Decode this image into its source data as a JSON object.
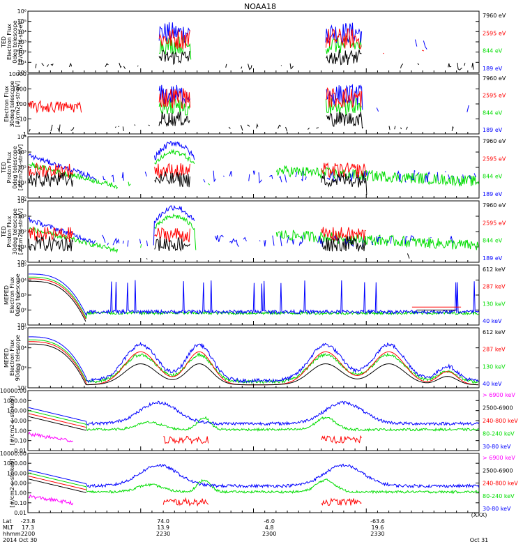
{
  "title": "NOAA18",
  "colors": {
    "black": "#000000",
    "red": "#ff0000",
    "green": "#00dd00",
    "blue": "#0000ff",
    "magenta": "#ff00ff",
    "axis": "#000000"
  },
  "chart_data": [
    {
      "type": "line",
      "ylabel": [
        "TED",
        "Electron Flux",
        "0deg telescope",
        "[#/cm2-s-str-eV]"
      ],
      "yticks": [
        "10⁰",
        "10¹",
        "10²",
        "10³",
        "10⁴",
        "10⁵",
        "10⁶"
      ],
      "ylim_log": [
        0,
        6
      ],
      "series": [
        {
          "name": "7960 eV",
          "color": "black"
        },
        {
          "name": "2595 eV",
          "color": "red"
        },
        {
          "name": "844 eV",
          "color": "green"
        },
        {
          "name": "189 eV",
          "color": "blue"
        }
      ]
    },
    {
      "type": "line",
      "ylabel": [
        "Electron Flux",
        "30deg telescope",
        "[#/cm2-s-str-eV]"
      ],
      "yticks": [
        "1",
        "10",
        "100",
        "1000",
        "10000"
      ],
      "ylim_log": [
        0,
        4
      ],
      "series": [
        {
          "name": "7960 eV",
          "color": "black"
        },
        {
          "name": "2595 eV",
          "color": "red"
        },
        {
          "name": "844 eV",
          "color": "green"
        },
        {
          "name": "189 eV",
          "color": "blue"
        }
      ]
    },
    {
      "type": "line",
      "ylabel": [
        "TED",
        "Proton Flux",
        "0deg telescope",
        "[#/cm2-s-str-eV]"
      ],
      "yticks": [
        "10⁰",
        "10¹",
        "10²",
        "10³",
        "10⁴"
      ],
      "ylim_log": [
        0,
        4
      ],
      "series": [
        {
          "name": "7960 eV",
          "color": "black"
        },
        {
          "name": "2595 eV",
          "color": "red"
        },
        {
          "name": "844 eV",
          "color": "green"
        },
        {
          "name": "189 eV",
          "color": "blue"
        }
      ]
    },
    {
      "type": "line",
      "ylabel": [
        "TED",
        "Proton Flux",
        "30deg telescope",
        "[#/cm2-s-str-eV]"
      ],
      "yticks": [
        "10⁰",
        "10¹",
        "10²",
        "10³",
        "10⁴"
      ],
      "ylim_log": [
        0,
        4
      ],
      "series": [
        {
          "name": "7960 eV",
          "color": "black"
        },
        {
          "name": "2595 eV",
          "color": "red"
        },
        {
          "name": "844 eV",
          "color": "green"
        },
        {
          "name": "189 eV",
          "color": "blue"
        }
      ]
    },
    {
      "type": "line",
      "ylabel": [
        "MEPED",
        "Electron Flux",
        "0deg telescope"
      ],
      "yticks": [
        "10¹",
        "10²",
        "10³",
        "10⁴",
        "10⁵"
      ],
      "ylim_log": [
        1,
        5
      ],
      "series": [
        {
          "name": "612 keV",
          "color": "black"
        },
        {
          "name": "287 keV",
          "color": "red"
        },
        {
          "name": "130 keV",
          "color": "green"
        },
        {
          "name": "40 keV",
          "color": "blue"
        }
      ]
    },
    {
      "type": "line",
      "ylabel": [
        "MEPED",
        "Electron Flux",
        "90deg telescope"
      ],
      "yticks": [
        "10²",
        "10³",
        "10⁴",
        "10⁵"
      ],
      "ylim_log": [
        2,
        5
      ],
      "series": [
        {
          "name": "612 keV",
          "color": "black"
        },
        {
          "name": "287 keV",
          "color": "red"
        },
        {
          "name": "130 keV",
          "color": "green"
        },
        {
          "name": "40 keV",
          "color": "blue"
        }
      ]
    },
    {
      "type": "line",
      "ylabel": [
        "[#/cm2-s-str-keV]"
      ],
      "yticks": [
        "0.01",
        "0.10",
        "1.00",
        "10.00",
        "100.00",
        "1000.00",
        "10000.00"
      ],
      "ylim_log": [
        -2,
        4
      ],
      "series": [
        {
          "name": "> 6900 keV",
          "color": "magenta"
        },
        {
          "name": "2500-6900",
          "color": "black"
        },
        {
          "name": "240-800 keV",
          "color": "red"
        },
        {
          "name": "80-240 keV",
          "color": "green"
        },
        {
          "name": "30-80 keV",
          "color": "blue"
        }
      ]
    },
    {
      "type": "line",
      "ylabel": [
        "[#/cm2-s-str-keV]"
      ],
      "yticks": [
        "0.01",
        "0.10",
        "1.00",
        "10.00",
        "100.00",
        "1000.00",
        "10000.00"
      ],
      "ylim_log": [
        -2,
        4
      ],
      "series": [
        {
          "name": "> 6900 keV",
          "color": "magenta"
        },
        {
          "name": "2500-6900",
          "color": "black"
        },
        {
          "name": "240-800 keV",
          "color": "red"
        },
        {
          "name": "80-240 keV",
          "color": "green"
        },
        {
          "name": "30-80 keV",
          "color": "blue"
        }
      ]
    }
  ],
  "time_axis": {
    "row_labels": [
      "Lat",
      "MLT",
      "hhmm",
      "2014"
    ],
    "columns": [
      {
        "values": [
          "-23.8",
          "17.3",
          "2200",
          "Oct 30"
        ]
      },
      {
        "values": [
          "74.0",
          "13.9",
          "2230",
          ""
        ]
      },
      {
        "values": [
          "-6.0",
          "4.8",
          "2300",
          ""
        ]
      },
      {
        "values": [
          "-63.6",
          "19.6",
          "2330",
          ""
        ]
      },
      {
        "values": [
          "",
          "",
          "",
          "Oct 31"
        ],
        "extra_top": "(XXX)"
      }
    ]
  }
}
